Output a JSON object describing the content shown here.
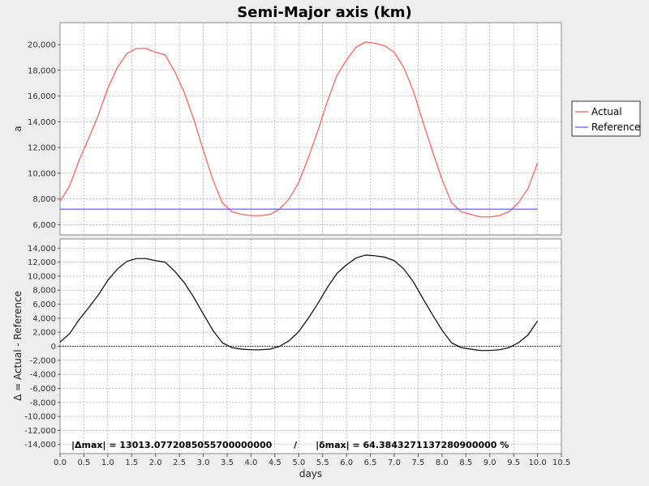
{
  "title": "Semi-Major axis (km)",
  "x_axis": {
    "label": "days",
    "min": 0,
    "max": 10.5,
    "ticks": [
      "0.0",
      "0.5",
      "1.0",
      "1.5",
      "2.0",
      "2.5",
      "3.0",
      "3.5",
      "4.0",
      "4.5",
      "5.0",
      "5.5",
      "6.0",
      "6.5",
      "7.0",
      "7.5",
      "8.0",
      "8.5",
      "9.0",
      "9.5",
      "10.0",
      "10.5"
    ]
  },
  "top_panel": {
    "ylabel": "a",
    "ylim": [
      5200,
      21700
    ],
    "yticks": [
      "6,000",
      "8,000",
      "10,000",
      "12,000",
      "14,000",
      "16,000",
      "18,000",
      "20,000"
    ]
  },
  "bottom_panel": {
    "ylabel": "Δ = Actual - Reference",
    "ylim": [
      -15300,
      15300
    ],
    "yticks": [
      "-14,000",
      "-12,000",
      "-10,000",
      "-8,000",
      "-6,000",
      "-4,000",
      "-2,000",
      "0",
      "2,000",
      "4,000",
      "6,000",
      "8,000",
      "10,000",
      "12,000",
      "14,000"
    ]
  },
  "legend": {
    "placement": "right",
    "items": [
      {
        "name": "Actual",
        "color": "#ff5555"
      },
      {
        "name": "Reference",
        "color": "#5555ff"
      }
    ]
  },
  "annotation": "|Δmax| = 13013.0772085055700000000       /      |δmax| = 64.3843271137280900000 %",
  "colors": {
    "actual": "#ff5555",
    "reference": "#5555ff",
    "delta": "#000000",
    "grid": "#999999"
  },
  "chart_data": [
    {
      "type": "line",
      "title": "Semi-Major axis (km)",
      "xlabel": "days",
      "ylabel": "a",
      "grid": true,
      "xlim": [
        0,
        10.5
      ],
      "ylim": [
        5200,
        21700
      ],
      "x": [
        0,
        0.2,
        0.4,
        0.6,
        0.8,
        1.0,
        1.2,
        1.4,
        1.6,
        1.8,
        2.0,
        2.2,
        2.4,
        2.6,
        2.8,
        3.0,
        3.2,
        3.4,
        3.6,
        3.8,
        4.0,
        4.2,
        4.4,
        4.6,
        4.8,
        5.0,
        5.2,
        5.4,
        5.6,
        5.8,
        6.0,
        6.2,
        6.4,
        6.6,
        6.8,
        7.0,
        7.2,
        7.4,
        7.6,
        7.8,
        8.0,
        8.2,
        8.4,
        8.6,
        8.8,
        9.0,
        9.2,
        9.4,
        9.6,
        9.8,
        10.0
      ],
      "series": [
        {
          "name": "Actual",
          "color": "#ff5555",
          "values": [
            7800,
            9000,
            11000,
            12700,
            14500,
            16600,
            18200,
            19300,
            19700,
            19700,
            19400,
            19200,
            17900,
            16300,
            14200,
            11800,
            9500,
            7700,
            7000,
            6800,
            6700,
            6700,
            6800,
            7200,
            8000,
            9300,
            11200,
            13300,
            15600,
            17600,
            18800,
            19800,
            20200,
            20100,
            19900,
            19400,
            18200,
            16400,
            14000,
            11700,
            9500,
            7700,
            7000,
            6800,
            6600,
            6600,
            6700,
            7000,
            7700,
            8800,
            10800
          ]
        },
        {
          "name": "Reference",
          "color": "#5555ff",
          "values": [
            7200,
            7200,
            7200,
            7200,
            7200,
            7200,
            7200,
            7200,
            7200,
            7200,
            7200,
            7200,
            7200,
            7200,
            7200,
            7200,
            7200,
            7200,
            7200,
            7200,
            7200,
            7200,
            7200,
            7200,
            7200,
            7200,
            7200,
            7200,
            7200,
            7200,
            7200,
            7200,
            7200,
            7200,
            7200,
            7200,
            7200,
            7200,
            7200,
            7200,
            7200,
            7200,
            7200,
            7200,
            7200,
            7200,
            7200,
            7200,
            7200,
            7200,
            7200
          ]
        }
      ]
    },
    {
      "type": "line",
      "xlabel": "days",
      "ylabel": "Δ = Actual - Reference",
      "grid": true,
      "xlim": [
        0,
        10.5
      ],
      "ylim": [
        -15300,
        15300
      ],
      "x": [
        0,
        0.2,
        0.4,
        0.6,
        0.8,
        1.0,
        1.2,
        1.4,
        1.6,
        1.8,
        2.0,
        2.2,
        2.4,
        2.6,
        2.8,
        3.0,
        3.2,
        3.4,
        3.6,
        3.8,
        4.0,
        4.2,
        4.4,
        4.6,
        4.8,
        5.0,
        5.2,
        5.4,
        5.6,
        5.8,
        6.0,
        6.2,
        6.4,
        6.6,
        6.8,
        7.0,
        7.2,
        7.4,
        7.6,
        7.8,
        8.0,
        8.2,
        8.4,
        8.6,
        8.8,
        9.0,
        9.2,
        9.4,
        9.6,
        9.8,
        10.0
      ],
      "series": [
        {
          "name": "",
          "color": "#000000",
          "values": [
            600,
            1800,
            3800,
            5500,
            7300,
            9400,
            11000,
            12100,
            12500,
            12500,
            12200,
            12000,
            10700,
            9100,
            7000,
            4600,
            2300,
            500,
            -200,
            -400,
            -500,
            -500,
            -400,
            0,
            800,
            2100,
            4000,
            6100,
            8400,
            10400,
            11600,
            12600,
            13000,
            12900,
            12700,
            12200,
            11000,
            9200,
            6800,
            4500,
            2300,
            500,
            -200,
            -400,
            -600,
            -600,
            -500,
            -200,
            500,
            1600,
            3600
          ]
        }
      ]
    }
  ]
}
